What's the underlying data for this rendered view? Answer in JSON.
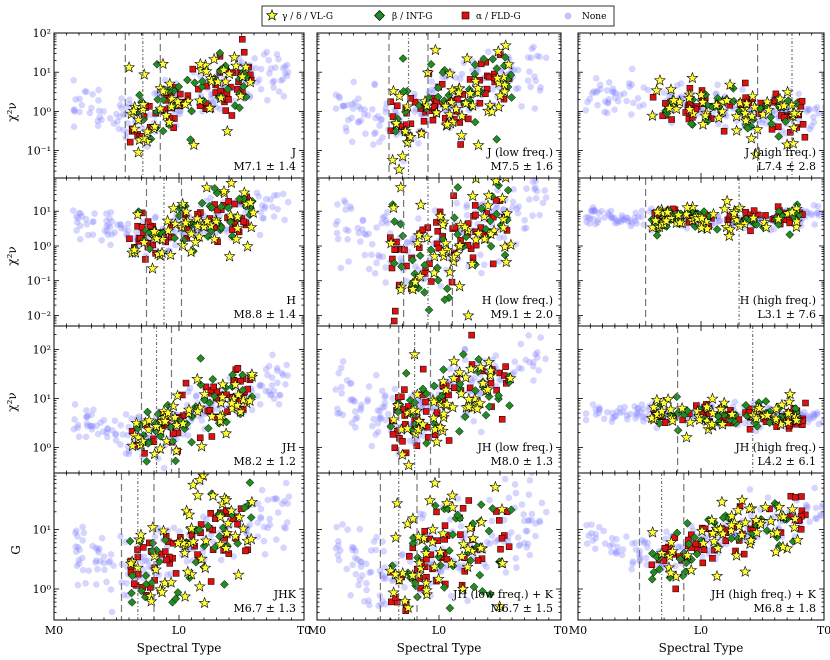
{
  "chart_data": {
    "type": "scatter",
    "title": "",
    "xlabel": "Spectral Type",
    "x_axis": {
      "range": [
        0,
        20
      ],
      "ticks": [
        {
          "value": 0,
          "label": "M0"
        },
        {
          "value": 10,
          "label": "L0"
        },
        {
          "value": 20,
          "label": "T0"
        }
      ]
    },
    "column_ranges": [
      [
        1.5,
        18.8
      ],
      [
        1.5,
        18.8
      ],
      [
        0.6,
        21.5
      ]
    ],
    "row_ylabels": [
      "χ²ν",
      "χ²ν",
      "χ²ν",
      "G"
    ],
    "row_yranges": [
      [
        0.02,
        100
      ],
      [
        0.005,
        90
      ],
      [
        0.3,
        300
      ],
      [
        0.3,
        90
      ]
    ],
    "row_ytick_labels": [
      [
        {
          "exp": -1,
          "label": "10⁻¹"
        },
        {
          "exp": 0,
          "label": "10⁰"
        },
        {
          "exp": 1,
          "label": "10¹"
        },
        {
          "exp": 2,
          "label": "10²"
        }
      ],
      [
        {
          "exp": -2,
          "label": "10⁻²"
        },
        {
          "exp": -1,
          "label": "10⁻¹"
        },
        {
          "exp": 0,
          "label": "10⁰"
        },
        {
          "exp": 1,
          "label": "10¹"
        }
      ],
      [
        {
          "exp": 0,
          "label": "10⁰"
        },
        {
          "exp": 1,
          "label": "10¹"
        },
        {
          "exp": 2,
          "label": "10²"
        }
      ],
      [
        {
          "exp": 0,
          "label": "10⁰"
        },
        {
          "exp": 1,
          "label": "10¹"
        }
      ]
    ],
    "legend": {
      "position": "top-center",
      "entries": [
        {
          "label": "γ / δ / VL-G",
          "marker": "star",
          "color": "#ffff33"
        },
        {
          "label": "β / INT-G",
          "marker": "diamond",
          "color": "#228b22"
        },
        {
          "label": "α / FLD-G",
          "marker": "square",
          "color": "#dd1111"
        },
        {
          "label": "None",
          "marker": "circle",
          "color": "#8888ff"
        }
      ]
    },
    "series_model": "minimum index curve per panel; point clouds scatter around it",
    "panels": [
      {
        "row": 0,
        "col": 0,
        "name": "J",
        "range_label": "M7.1 ± 1.4",
        "best": 7.1,
        "sigma": 1.4,
        "min_val": 0.55,
        "low_val": 2.0,
        "high_val": 17,
        "scatter": 0.45
      },
      {
        "row": 0,
        "col": 1,
        "name": "J (low freq.)",
        "range_label": "M7.5 ± 1.6",
        "best": 7.5,
        "sigma": 1.6,
        "min_val": 0.45,
        "low_val": 1.6,
        "high_val": 18,
        "scatter": 0.55
      },
      {
        "row": 0,
        "col": 2,
        "name": "J (high freq.)",
        "range_label": "L7.4 ± 2.8",
        "best": 17.4,
        "sigma": 2.8,
        "min_val": 0.9,
        "low_val": 3.2,
        "high_val": 0.8,
        "scatter": 0.35
      },
      {
        "row": 1,
        "col": 0,
        "name": "H",
        "range_label": "M8.8 ± 1.4",
        "best": 8.8,
        "sigma": 1.4,
        "min_val": 1.6,
        "low_val": 9,
        "high_val": 20,
        "scatter": 0.4
      },
      {
        "row": 1,
        "col": 1,
        "name": "H (low freq.)",
        "range_label": "M9.1 ± 2.0",
        "best": 9.1,
        "sigma": 2.0,
        "min_val": 0.4,
        "low_val": 10,
        "high_val": 30,
        "scatter": 0.75
      },
      {
        "row": 1,
        "col": 2,
        "name": "H (high freq.)",
        "range_label": "L3.1 ± 7.6",
        "best": 13.1,
        "sigma": 7.6,
        "min_val": 5.5,
        "low_val": 7.5,
        "high_val": 6.5,
        "scatter": 0.2
      },
      {
        "row": 2,
        "col": 0,
        "name": "JH",
        "range_label": "M8.2 ± 1.2",
        "best": 8.2,
        "sigma": 1.2,
        "min_val": 1.4,
        "low_val": 5,
        "high_val": 30,
        "scatter": 0.35
      },
      {
        "row": 2,
        "col": 1,
        "name": "JH (low freq.)",
        "range_label": "M8.0 ± 1.3",
        "best": 8.0,
        "sigma": 1.3,
        "min_val": 3.5,
        "low_val": 40,
        "high_val": 90,
        "scatter": 0.45
      },
      {
        "row": 2,
        "col": 2,
        "name": "JH (high freq.)",
        "range_label": "L4.2 ± 6.1",
        "best": 14.2,
        "sigma": 6.1,
        "min_val": 4.5,
        "low_val": 5,
        "high_val": 4.5,
        "scatter": 0.15
      },
      {
        "row": 3,
        "col": 0,
        "name": "JHK",
        "range_label": "M6.7 ± 1.3",
        "best": 6.7,
        "sigma": 1.3,
        "min_val": 1.5,
        "low_val": 10,
        "high_val": 25,
        "scatter": 0.4
      },
      {
        "row": 3,
        "col": 1,
        "name": "JH (low freq.) + K",
        "range_label": "M6.7 ± 1.5",
        "best": 6.7,
        "sigma": 1.5,
        "min_val": 1.2,
        "low_val": 8,
        "high_val": 20,
        "scatter": 0.55
      },
      {
        "row": 3,
        "col": 2,
        "name": "JH (high freq.) + K",
        "range_label": "M6.8 ± 1.8",
        "best": 6.8,
        "sigma": 1.8,
        "min_val": 3,
        "low_val": 12,
        "high_val": 20,
        "scatter": 0.25
      }
    ]
  }
}
